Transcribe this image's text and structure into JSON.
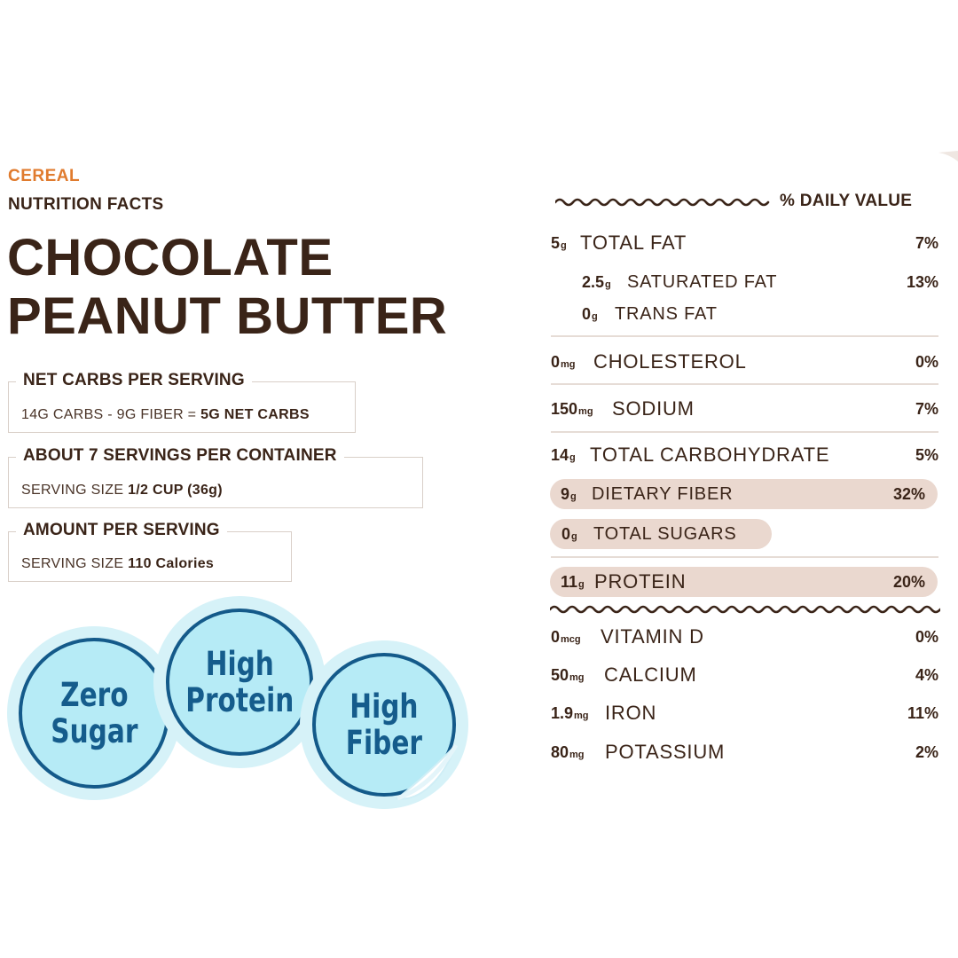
{
  "header": {
    "category": "CEREAL",
    "facts_label": "NUTRITION FACTS",
    "title_line1": "CHOCOLATE",
    "title_line2": "PEANUT BUTTER"
  },
  "boxes": {
    "net_carbs": {
      "title": "NET CARBS PER SERVING",
      "text": "14G CARBS - 9G FIBER = ",
      "emphasis": "5G NET CARBS"
    },
    "servings": {
      "title": "ABOUT 7 SERVINGS PER CONTAINER",
      "text": "SERVING SIZE ",
      "emphasis": "1/2 CUP (36g)"
    },
    "amount": {
      "title": "AMOUNT PER SERVING",
      "text": "SERVING SIZE ",
      "emphasis": "110 Calories"
    }
  },
  "badges": {
    "zero_sugar": {
      "line1": "Zero",
      "line2": "Sugar"
    },
    "high_protein": {
      "line1": "High",
      "line2": "Protein"
    },
    "high_fiber": {
      "line1": "High",
      "line2": "Fiber"
    }
  },
  "daily_value_header": "% DAILY VALUE",
  "nutrients": {
    "total_fat": {
      "num": "5",
      "unit": "g",
      "label": "TOTAL FAT",
      "pct": "7%"
    },
    "saturated_fat": {
      "num": "2.5",
      "unit": "g",
      "label": "SATURATED FAT",
      "pct": "13%"
    },
    "trans_fat": {
      "num": "0",
      "unit": "g",
      "label": "TRANS FAT"
    },
    "cholesterol": {
      "num": "0",
      "unit": "mg",
      "label": "CHOLESTEROL",
      "pct": "0%"
    },
    "sodium": {
      "num": "150",
      "unit": "mg",
      "label": "SODIUM",
      "pct": "7%"
    },
    "total_carb": {
      "num": "14",
      "unit": "g",
      "label": "TOTAL CARBOHYDRATE",
      "pct": "5%"
    },
    "dietary_fiber": {
      "num": "9",
      "unit": "g",
      "label": "DIETARY FIBER",
      "pct": "32%"
    },
    "total_sugars": {
      "num": "0",
      "unit": "g",
      "label": "TOTAL SUGARS"
    },
    "protein": {
      "num": "11",
      "unit": "g",
      "label": "PROTEIN",
      "pct": "20%"
    },
    "vitamin_d": {
      "num": "0",
      "unit": "mcg",
      "label": "VITAMIN D",
      "pct": "0%"
    },
    "calcium": {
      "num": "50",
      "unit": "mg",
      "label": "CALCIUM",
      "pct": "4%"
    },
    "iron": {
      "num": "1.9",
      "unit": "mg",
      "label": "IRON",
      "pct": "11%"
    },
    "potassium": {
      "num": "80",
      "unit": "mg",
      "label": "POTASSIUM",
      "pct": "2%"
    }
  },
  "colors": {
    "text_brown": "#3a2418",
    "accent_orange": "#e07b2e",
    "pill_fill": "#ead8cf",
    "badge_fill": "#b6ebf6",
    "badge_ring": "#145a8a"
  }
}
